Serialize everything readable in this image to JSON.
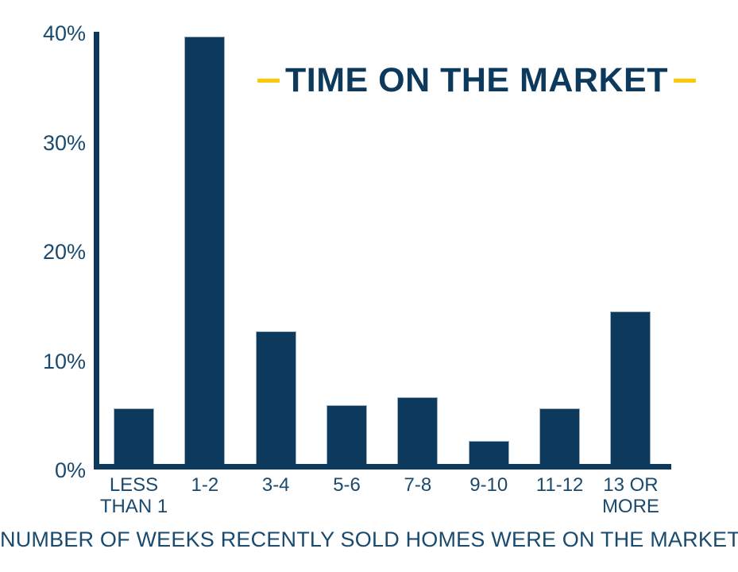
{
  "title": {
    "text": "TIME ON THE MARKET"
  },
  "caption": "NUMBER OF WEEKS RECENTLY SOLD HOMES WERE ON THE MARKET",
  "colors": {
    "bar_navy": "#0d3a5c",
    "label_navy": "#1a4a6e",
    "accent_yellow": "#ffc60a",
    "bar_stroke": "#9cb0bf",
    "background": "#ffffff"
  },
  "chart_data": {
    "type": "bar",
    "title": "TIME ON THE MARKET",
    "xlabel": "NUMBER OF WEEKS RECENTLY SOLD HOMES WERE ON THE MARKET",
    "ylabel": "",
    "unit": "%",
    "categories": [
      "LESS THAN 1",
      "1-2",
      "3-4",
      "5-6",
      "7-8",
      "9-10",
      "11-12",
      "13 OR MORE"
    ],
    "values": [
      5.6,
      39.7,
      12.7,
      5.9,
      6.6,
      2.6,
      5.6,
      14.5
    ],
    "ylim": [
      0,
      40
    ],
    "yticks": [
      "40%",
      "30%",
      "20%",
      "10%",
      "0%"
    ],
    "grid": false,
    "legend": false,
    "bar_color": "#0d3a5c"
  }
}
